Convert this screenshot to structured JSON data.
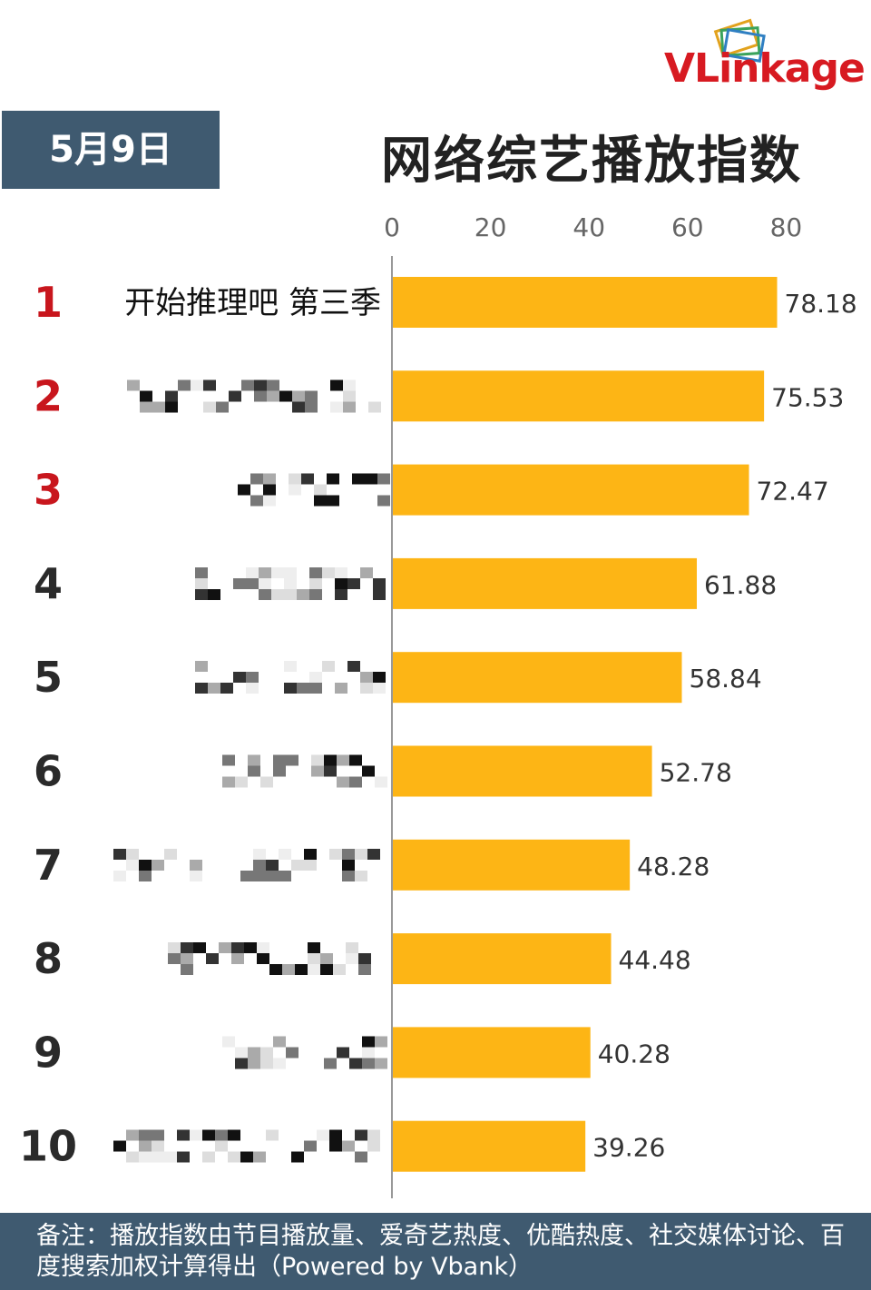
{
  "brand": {
    "logo_text": "VLinkage"
  },
  "header": {
    "date": "5月9日",
    "title": "网络综艺播放指数"
  },
  "chart_data": {
    "type": "bar",
    "orientation": "horizontal",
    "title": "网络综艺播放指数",
    "xlim": [
      0,
      80
    ],
    "x_ticks": [
      0,
      20,
      40,
      60,
      80
    ],
    "bar_color": "#fdb515",
    "rank_colors": {
      "top3": "#c8161d",
      "rest": "#2a2a2a"
    },
    "categories": [
      "开始推理吧 第三季",
      "",
      "",
      "",
      "",
      "",
      "",
      "",
      "",
      ""
    ],
    "ranks": [
      "1",
      "2",
      "3",
      "4",
      "5",
      "6",
      "7",
      "8",
      "9",
      "10"
    ],
    "values": [
      78.18,
      75.53,
      72.47,
      61.88,
      58.84,
      52.78,
      48.28,
      44.48,
      40.28,
      39.26
    ],
    "value_labels": [
      "78.18",
      "75.53",
      "72.47",
      "61.88",
      "58.84",
      "52.78",
      "48.28",
      "44.48",
      "40.28",
      "39.26"
    ],
    "grid": false
  },
  "footer": {
    "note": "备注：播放指数由节目播放量、爱奇艺热度、优酷热度、社交媒体讨论、百度搜索加权计算得出（Powered by Vbank）"
  }
}
